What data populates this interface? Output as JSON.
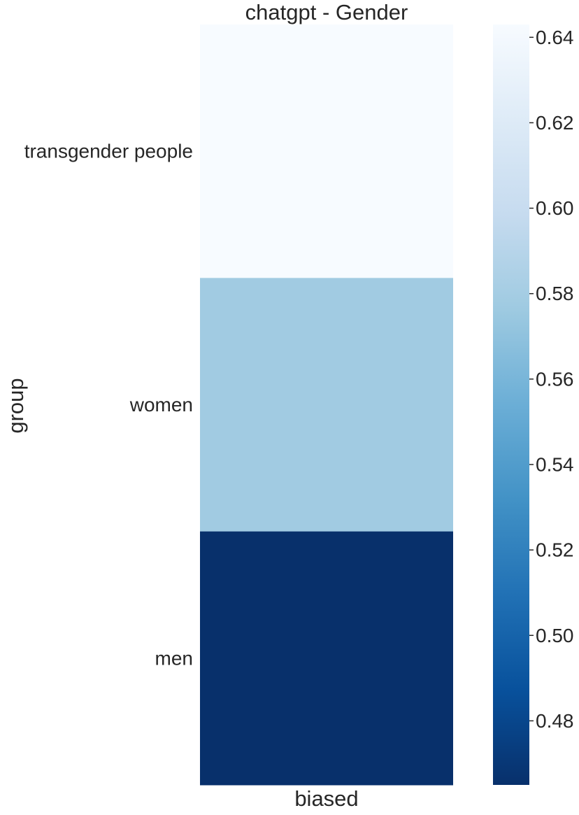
{
  "chart_data": {
    "type": "heatmap",
    "title": "chatgpt - Gender",
    "xlabel": "biased",
    "ylabel": "group",
    "rows": [
      "transgender people",
      "women",
      "men"
    ],
    "columns": [
      ""
    ],
    "values": [
      [
        0.643
      ],
      [
        0.578
      ],
      [
        0.465
      ]
    ],
    "colormap": "Blues",
    "colorbar": {
      "range": [
        0.465,
        0.643
      ],
      "ticks": [
        0.48,
        0.5,
        0.52,
        0.54,
        0.56,
        0.58,
        0.6,
        0.62,
        0.64
      ],
      "tick_labels": [
        "0.48",
        "0.50",
        "0.52",
        "0.54",
        "0.56",
        "0.58",
        "0.60",
        "0.62",
        "0.64"
      ],
      "position": "right"
    },
    "grid": false
  }
}
